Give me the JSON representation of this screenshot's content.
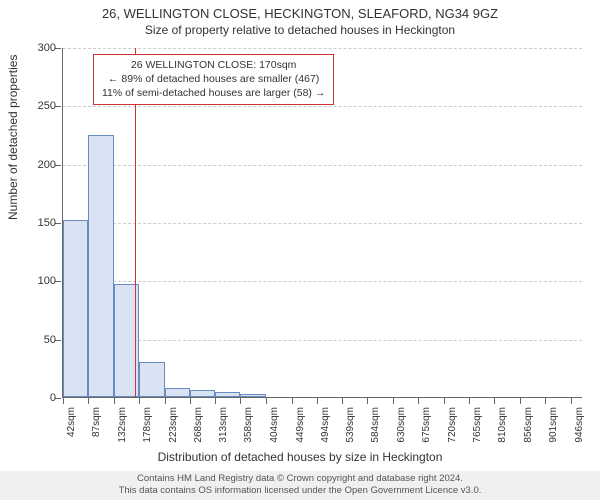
{
  "title": "26, WELLINGTON CLOSE, HECKINGTON, SLEAFORD, NG34 9GZ",
  "subtitle": "Size of property relative to detached houses in Heckington",
  "xaxis_title": "Distribution of detached houses by size in Heckington",
  "yaxis_title": "Number of detached properties",
  "chart": {
    "type": "histogram",
    "background_color": "#ffffff",
    "grid_color": "#cccccc",
    "axis_color": "#666666",
    "bar_fill": "#d9e3f3",
    "bar_border": "#6a8bc0",
    "marker_color": "#cc3333",
    "ylim": [
      0,
      300
    ],
    "ytick_step": 50,
    "x_labels": [
      "42sqm",
      "87sqm",
      "132sqm",
      "178sqm",
      "223sqm",
      "268sqm",
      "313sqm",
      "358sqm",
      "404sqm",
      "449sqm",
      "494sqm",
      "539sqm",
      "584sqm",
      "630sqm",
      "675sqm",
      "720sqm",
      "765sqm",
      "810sqm",
      "856sqm",
      "901sqm",
      "946sqm"
    ],
    "x_tick_values": [
      42,
      87,
      132,
      178,
      223,
      268,
      313,
      358,
      404,
      449,
      494,
      539,
      584,
      630,
      675,
      720,
      765,
      810,
      856,
      901,
      946
    ],
    "xlim": [
      42,
      968
    ],
    "bars": [
      {
        "x0": 42,
        "x1": 87,
        "count": 152
      },
      {
        "x0": 87,
        "x1": 132,
        "count": 225
      },
      {
        "x0": 132,
        "x1": 178,
        "count": 97
      },
      {
        "x0": 178,
        "x1": 223,
        "count": 30
      },
      {
        "x0": 223,
        "x1": 268,
        "count": 8
      },
      {
        "x0": 268,
        "x1": 313,
        "count": 6
      },
      {
        "x0": 313,
        "x1": 358,
        "count": 4
      },
      {
        "x0": 358,
        "x1": 404,
        "count": 3
      },
      {
        "x0": 404,
        "x1": 449,
        "count": 0
      },
      {
        "x0": 449,
        "x1": 494,
        "count": 0
      },
      {
        "x0": 494,
        "x1": 539,
        "count": 0
      },
      {
        "x0": 539,
        "x1": 584,
        "count": 0
      },
      {
        "x0": 584,
        "x1": 630,
        "count": 0
      },
      {
        "x0": 630,
        "x1": 675,
        "count": 0
      },
      {
        "x0": 675,
        "x1": 720,
        "count": 0
      },
      {
        "x0": 720,
        "x1": 765,
        "count": 0
      },
      {
        "x0": 765,
        "x1": 810,
        "count": 0
      },
      {
        "x0": 810,
        "x1": 856,
        "count": 0
      },
      {
        "x0": 856,
        "x1": 901,
        "count": 0
      },
      {
        "x0": 901,
        "x1": 946,
        "count": 0
      }
    ],
    "marker_x": 170,
    "annotation": {
      "line1": "26 WELLINGTON CLOSE: 170sqm",
      "line2": "← 89% of detached houses are smaller (467)",
      "line3": "11% of semi-detached houses are larger (58) →",
      "border_color": "#cc3333",
      "fontsize": 10.5
    }
  },
  "footer": {
    "line1": "Contains HM Land Registry data © Crown copyright and database right 2024.",
    "line2": "This data contains OS information licensed under the Open Government Licence v3.0."
  },
  "typography": {
    "title_fontsize": 13,
    "subtitle_fontsize": 12,
    "axis_title_fontsize": 12,
    "tick_fontsize": 11,
    "xlabel_fontsize": 10,
    "footer_fontsize": 9.5,
    "font_family": "Arial"
  }
}
